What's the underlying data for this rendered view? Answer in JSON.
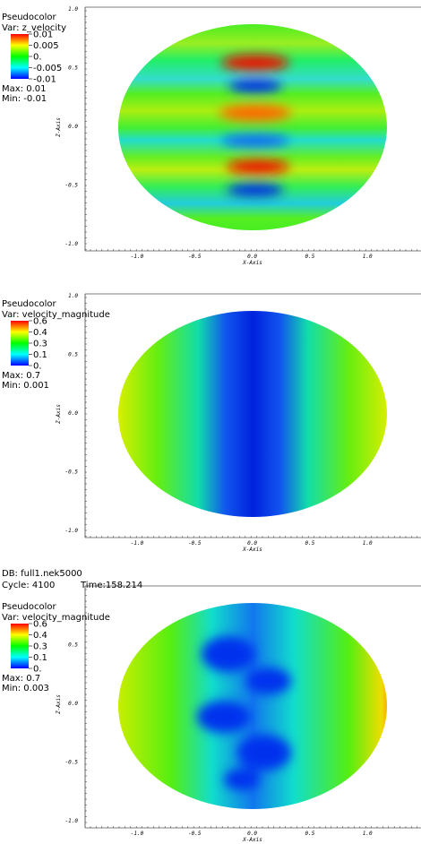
{
  "panels": [
    {
      "legend": {
        "plot": "Pseudocolor",
        "var": "Var: z_velocity",
        "labels": [
          "0.01",
          "0.005",
          "0.",
          "-0.005",
          "-0.01"
        ],
        "max": "Max: 0.01",
        "min": "Min: -0.01"
      },
      "xaxis": {
        "label": "X-Axis",
        "ticks": [
          "-1.0",
          "-0.5",
          "0.0",
          "0.5",
          "1.0"
        ]
      },
      "yaxis": {
        "label": "Z-Axis",
        "ticks": [
          "1.0",
          "0.5",
          "0.0",
          "-0.5",
          "-1.0"
        ]
      }
    },
    {
      "legend": {
        "plot": "Pseudocolor",
        "var": "Var: velocity_magnitude",
        "labels": [
          "0.6",
          "0.4",
          "0.3",
          "0.1",
          "0."
        ],
        "max": "Max: 0.7",
        "min": "Min: 0.001"
      },
      "xaxis": {
        "label": "X-Axis",
        "ticks": [
          "-1.0",
          "-0.5",
          "0.0",
          "0.5",
          "1.0"
        ]
      },
      "yaxis": {
        "label": "Z-Axis",
        "ticks": [
          "1.0",
          "0.5",
          "0.0",
          "-0.5",
          "-1.0"
        ]
      }
    },
    {
      "db": "DB: full1.nek5000",
      "cycle": "Cycle: 4100",
      "time": "Time:158.214",
      "legend": {
        "plot": "Pseudocolor",
        "var": "Var: velocity_magnitude",
        "labels": [
          "0.6",
          "0.4",
          "0.3",
          "0.1",
          "0."
        ],
        "max": "Max: 0.7",
        "min": "Min: 0.003"
      },
      "xaxis": {
        "label": "X-Axis",
        "ticks": [
          "-1.0",
          "-0.5",
          "0.0",
          "0.5",
          "1.0"
        ]
      },
      "yaxis": {
        "label": "Z-Axis",
        "ticks": [
          "0.5",
          "0.0",
          "-0.5",
          "-1.0"
        ]
      }
    }
  ]
}
